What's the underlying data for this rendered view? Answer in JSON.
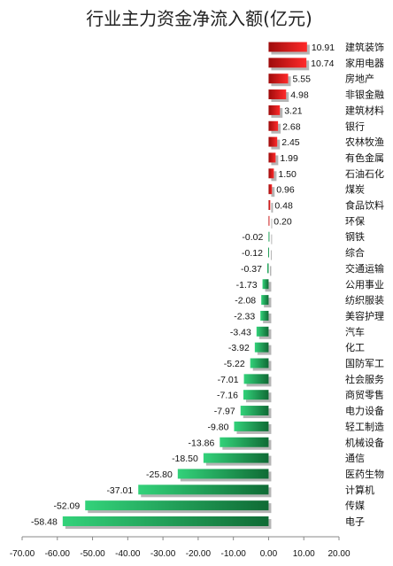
{
  "chart_data": {
    "type": "bar",
    "orientation": "horizontal",
    "title": "行业主力资金净流入额(亿元)",
    "categories": [
      "建筑装饰",
      "家用电器",
      "房地产",
      "非银金融",
      "建筑材料",
      "银行",
      "农林牧渔",
      "有色金属",
      "石油石化",
      "煤炭",
      "食品饮料",
      "环保",
      "钢铁",
      "综合",
      "交通运输",
      "公用事业",
      "纺织服装",
      "美容护理",
      "汽车",
      "化工",
      "国防军工",
      "社会服务",
      "商贸零售",
      "电力设备",
      "轻工制造",
      "机械设备",
      "通信",
      "医药生物",
      "计算机",
      "传媒",
      "电子"
    ],
    "values": [
      10.91,
      10.74,
      5.55,
      4.98,
      3.21,
      2.68,
      2.45,
      1.99,
      1.5,
      0.96,
      0.48,
      0.2,
      -0.02,
      -0.12,
      -0.37,
      -1.73,
      -2.08,
      -2.33,
      -3.43,
      -3.92,
      -5.22,
      -7.01,
      -7.16,
      -7.97,
      -9.8,
      -13.86,
      -18.5,
      -25.8,
      -37.01,
      -52.09,
      -58.48
    ],
    "value_labels": [
      "10.91",
      "10.74",
      "5.55",
      "4.98",
      "3.21",
      "2.68",
      "2.45",
      "1.99",
      "1.50",
      "0.96",
      "0.48",
      "0.20",
      "-0.02",
      "-0.12",
      "-0.37",
      "-1.73",
      "-2.08",
      "-2.33",
      "-3.43",
      "-3.92",
      "-5.22",
      "-7.01",
      "-7.16",
      "-7.97",
      "-9.80",
      "-13.86",
      "-18.50",
      "-25.80",
      "-37.01",
      "-52.09",
      "-58.48"
    ],
    "xlim": [
      -70,
      20
    ],
    "xticks": [
      -70,
      -60,
      -50,
      -40,
      -30,
      -20,
      -10,
      0,
      10,
      20
    ],
    "xtick_labels": [
      "-70.00",
      "-60.00",
      "-50.00",
      "-40.00",
      "-30.00",
      "-20.00",
      "-10.00",
      "0.00",
      "10.00",
      "20.00"
    ],
    "grid": false,
    "legend": "none",
    "colors": {
      "positive_dark": "#9e0b0b",
      "positive_light": "#ff2a2a",
      "negative_dark": "#0f6b35",
      "negative_light": "#33d27a",
      "shadow": "#b5b5b5"
    }
  }
}
